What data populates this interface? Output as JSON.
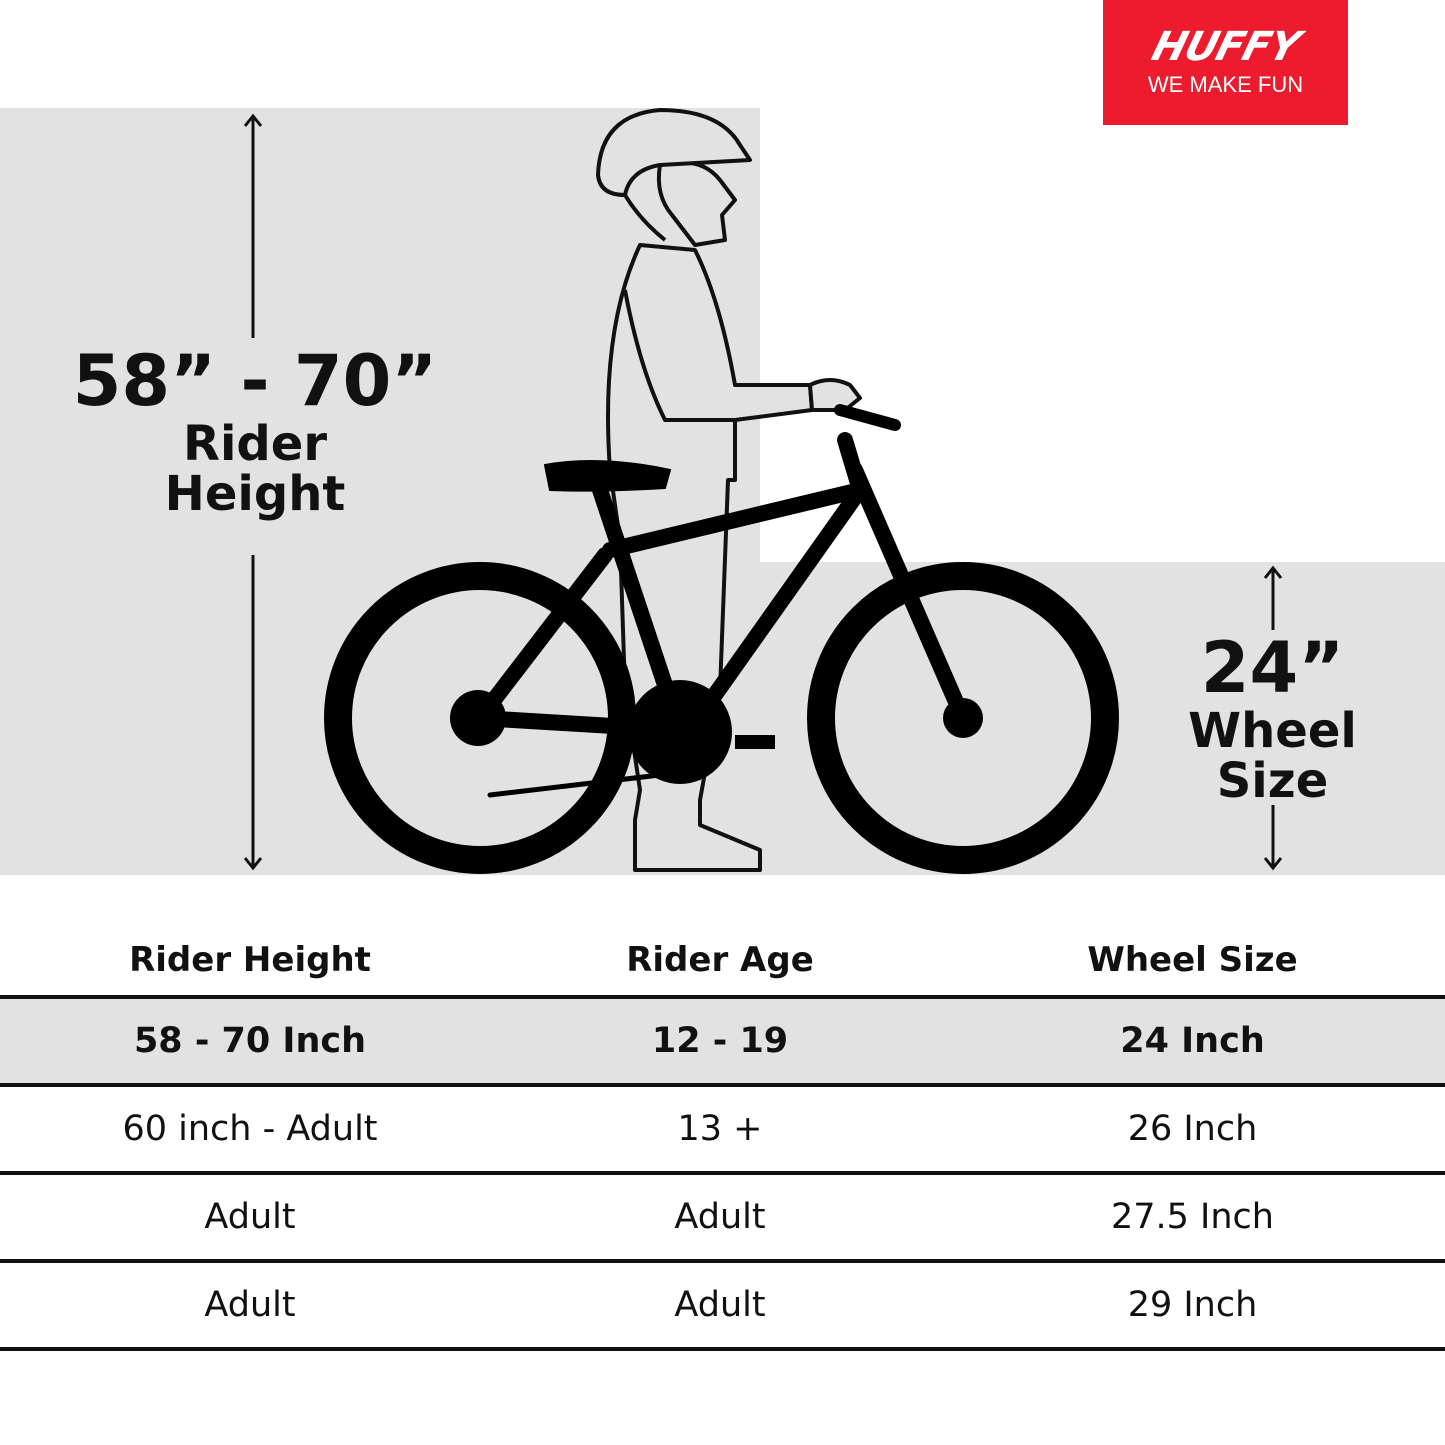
{
  "logo": {
    "brand": "HUFFY",
    "tagline": "WE MAKE FUN"
  },
  "rider_height_label": {
    "range": "58” - 70”",
    "line1": "Rider",
    "line2": "Height"
  },
  "wheel_size_label": {
    "size": "24”",
    "line1": "Wheel",
    "line2": "Size"
  },
  "colors": {
    "brand_red": "#ec1c2e",
    "band_gray": "#e2e2e2",
    "ink": "#111111"
  },
  "table": {
    "headers": [
      "Rider Height",
      "Rider Age",
      "Wheel Size"
    ],
    "rows": [
      {
        "highlighted": true,
        "cells": [
          "58 - 70 Inch",
          "12 - 19",
          "24 Inch"
        ]
      },
      {
        "highlighted": false,
        "cells": [
          "60 inch - Adult",
          "13 +",
          "26 Inch"
        ]
      },
      {
        "highlighted": false,
        "cells": [
          "Adult",
          "Adult",
          "27.5 Inch"
        ]
      },
      {
        "highlighted": false,
        "cells": [
          "Adult",
          "Adult",
          "29 Inch"
        ]
      }
    ]
  }
}
